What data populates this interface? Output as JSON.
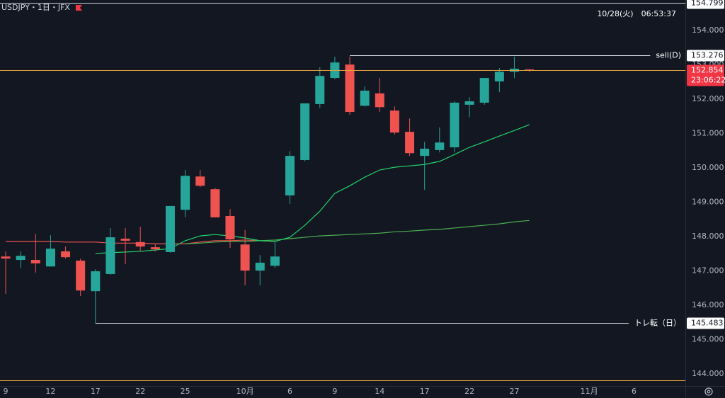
{
  "header": {
    "symbol": "USDJPY・1日・JFX",
    "datetime": "10/28(火)　06:53:37"
  },
  "chart_data": {
    "type": "candlestick",
    "x": [
      0,
      1,
      2,
      3,
      4,
      5,
      6,
      7,
      8,
      9,
      10,
      11,
      12,
      13,
      14,
      15,
      16,
      17,
      18,
      19,
      20,
      21,
      22,
      23,
      24,
      25,
      26,
      27,
      28,
      29,
      30,
      31,
      32,
      33,
      34,
      35
    ],
    "open": [
      147.42,
      147.32,
      147.32,
      147.13,
      147.57,
      147.3,
      146.41,
      146.91,
      147.94,
      147.84,
      147.69,
      147.55,
      148.78,
      149.75,
      149.38,
      148.6,
      147.77,
      147.01,
      147.15,
      149.2,
      150.23,
      151.86,
      152.62,
      153.01,
      151.81,
      152.17,
      151.67,
      151.05,
      150.35,
      150.52,
      150.6,
      151.84,
      151.9,
      152.52,
      152.8,
      152.87
    ],
    "high": [
      147.57,
      147.57,
      148.08,
      148.04,
      147.71,
      147.36,
      147.05,
      148.25,
      148.25,
      148.29,
      147.77,
      148.89,
      149.94,
      149.94,
      149.42,
      148.8,
      148.19,
      147.46,
      147.84,
      150.49,
      151.88,
      152.93,
      153.24,
      153.24,
      152.37,
      152.62,
      151.79,
      151.44,
      150.76,
      151.18,
      151.94,
      152.06,
      152.62,
      152.91,
      153.24,
      152.87
    ],
    "low": [
      146.33,
      147.09,
      146.95,
      147.13,
      147.36,
      146.27,
      145.48,
      146.89,
      147.2,
      147.57,
      147.57,
      147.53,
      148.56,
      149.44,
      148.56,
      147.67,
      146.58,
      146.58,
      147.09,
      148.95,
      150.19,
      151.75,
      152.58,
      151.55,
      151.79,
      151.63,
      150.97,
      150.35,
      149.36,
      150.45,
      150.45,
      151.48,
      151.84,
      152.21,
      152.62,
      152.8
    ],
    "close": [
      147.36,
      147.44,
      147.22,
      147.65,
      147.4,
      146.43,
      146.99,
      147.98,
      147.88,
      147.71,
      147.63,
      148.89,
      149.77,
      149.48,
      148.56,
      147.92,
      147.01,
      147.24,
      147.42,
      150.35,
      151.88,
      152.68,
      153.07,
      151.63,
      152.25,
      151.77,
      151.03,
      150.43,
      150.56,
      150.74,
      151.9,
      151.94,
      152.62,
      152.8,
      152.89,
      152.854
    ],
    "up_color": "#26a69a",
    "down_color": "#ef5350",
    "moving_averages": [
      {
        "color": "#ef5350",
        "values": [
          147.86,
          147.86,
          147.86,
          147.86,
          147.84,
          147.84,
          147.84,
          147.81,
          147.81,
          147.81,
          147.79,
          147.79,
          147.79,
          147.84,
          147.88,
          147.88,
          147.9,
          147.88,
          147.86,
          null,
          null,
          null,
          null,
          null,
          null,
          null,
          null,
          null,
          null,
          null,
          null,
          null,
          null,
          null,
          null,
          null
        ]
      },
      {
        "color": "#4caf50",
        "values": [
          null,
          null,
          null,
          null,
          null,
          null,
          null,
          null,
          null,
          null,
          null,
          null,
          147.79,
          147.81,
          147.84,
          147.86,
          147.86,
          147.88,
          147.9,
          147.94,
          147.98,
          148.02,
          148.04,
          148.06,
          148.08,
          148.1,
          148.14,
          148.16,
          148.19,
          148.21,
          148.25,
          148.29,
          148.33,
          148.37,
          148.43,
          148.47
        ]
      },
      {
        "color": "#22d36b",
        "values": [
          null,
          null,
          null,
          null,
          null,
          null,
          147.51,
          147.53,
          147.55,
          147.57,
          147.61,
          147.65,
          147.88,
          148.02,
          148.06,
          148.02,
          147.96,
          147.88,
          147.86,
          147.98,
          148.33,
          148.74,
          149.26,
          149.48,
          149.73,
          149.94,
          150.02,
          150.06,
          150.1,
          150.19,
          150.39,
          150.6,
          150.76,
          150.93,
          151.09,
          151.26
        ]
      }
    ],
    "levels": [
      {
        "value": 154.799,
        "label": "154.799",
        "color": "#d1d4dc",
        "label_color": "#ffffff"
      },
      {
        "value": 153.276,
        "label": "153.276",
        "text": "sell(D)",
        "from": 23,
        "color": "#d1d4dc",
        "label_color": "#ffffff"
      },
      {
        "value": 145.483,
        "label": "145.483",
        "text": "トレ転（日）",
        "from": 6,
        "color": "#d1d4dc",
        "label_color": "#ffffff"
      },
      {
        "value": 143.81,
        "color": "#e8a33d"
      },
      {
        "value": 152.854,
        "label": "152.854",
        "countdown": "23:06:22",
        "color": "#e8a33d",
        "label_color": "#f23645"
      }
    ],
    "xlim": [
      -0.38,
      45.43
    ],
    "xticks": [
      {
        "value": 0,
        "label": "9"
      },
      {
        "value": 3,
        "label": "12"
      },
      {
        "value": 6,
        "label": "17"
      },
      {
        "value": 9,
        "label": "22"
      },
      {
        "value": 12,
        "label": "25"
      },
      {
        "value": 16,
        "label": "10月"
      },
      {
        "value": 19,
        "label": "6"
      },
      {
        "value": 22,
        "label": "9"
      },
      {
        "value": 25,
        "label": "14"
      },
      {
        "value": 28,
        "label": "17"
      },
      {
        "value": 31,
        "label": "22"
      },
      {
        "value": 34,
        "label": "27"
      },
      {
        "value": 39,
        "label": "11月"
      },
      {
        "value": 42,
        "label": "6"
      }
    ],
    "ylim": [
      143.65,
      154.89
    ],
    "yticks": [
      {
        "value": 144,
        "label": "144.000"
      },
      {
        "value": 145,
        "label": "145.000"
      },
      {
        "value": 146,
        "label": "146.000"
      },
      {
        "value": 147,
        "label": "147.000"
      },
      {
        "value": 148,
        "label": "148.000"
      },
      {
        "value": 149,
        "label": "149.000"
      },
      {
        "value": 150,
        "label": "150.000"
      },
      {
        "value": 151,
        "label": "151.000"
      },
      {
        "value": 152,
        "label": "152.000"
      },
      {
        "value": 153,
        "label": "153.000"
      },
      {
        "value": 154,
        "label": "154.000"
      }
    ]
  }
}
